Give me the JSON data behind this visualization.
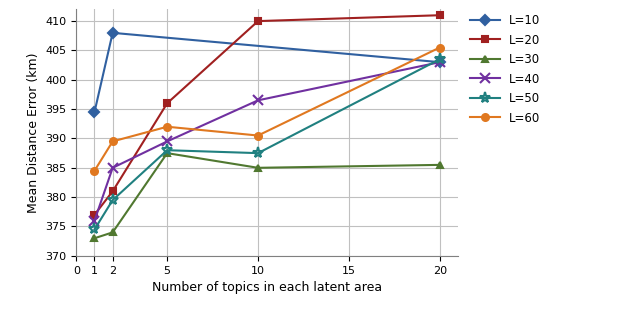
{
  "x": [
    1,
    2,
    5,
    10,
    20
  ],
  "series": {
    "L=10": [
      394.5,
      408.0,
      null,
      null,
      403.0
    ],
    "L=20": [
      377.0,
      381.0,
      396.0,
      410.0,
      411.0
    ],
    "L=30": [
      373.0,
      374.0,
      387.5,
      385.0,
      385.5
    ],
    "L=40": [
      376.0,
      385.0,
      389.5,
      396.5,
      403.0
    ],
    "L=50": [
      374.5,
      379.5,
      388.0,
      387.5,
      403.5
    ],
    "L=60": [
      384.5,
      389.5,
      392.0,
      390.5,
      405.5
    ]
  },
  "colors": {
    "L=10": "#3060A0",
    "L=20": "#A02020",
    "L=30": "#507830",
    "L=40": "#7030A0",
    "L=50": "#208080",
    "L=60": "#E07820"
  },
  "markers": {
    "L=10": "D",
    "L=20": "s",
    "L=30": "^",
    "L=40": "x",
    "L=50": "*",
    "L=60": "o"
  },
  "xlabel": "Number of topics in each latent area",
  "ylabel": "Mean Distance Error (km)",
  "ylim": [
    370,
    412
  ],
  "yticks": [
    370,
    375,
    380,
    385,
    390,
    395,
    400,
    405,
    410
  ],
  "xticks": [
    0,
    5,
    10,
    15,
    20
  ],
  "xlim": [
    0,
    21
  ],
  "legend_order": [
    "L=10",
    "L=20",
    "L=30",
    "L=40",
    "L=50",
    "L=60"
  ]
}
